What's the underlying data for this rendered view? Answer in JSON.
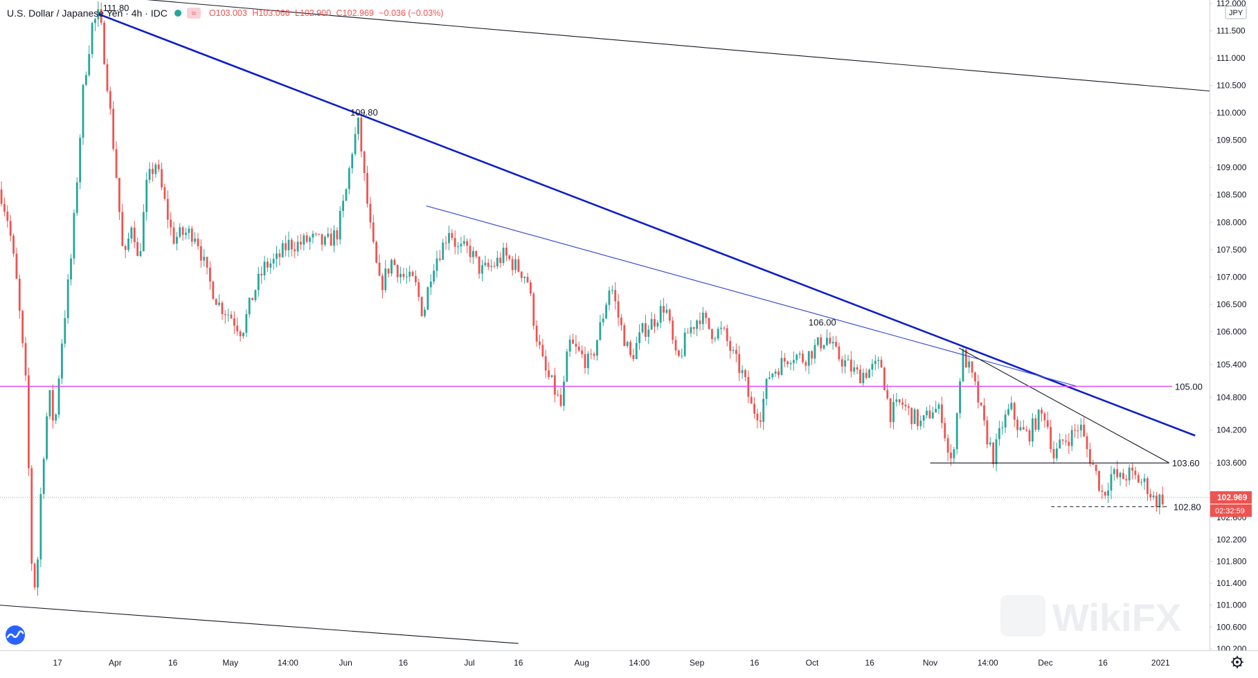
{
  "header": {
    "symbol": "U.S. Dollar / Japanese Yen · 4h · IDC",
    "open": "O103.003",
    "high": "H103.066",
    "low": "L102.900",
    "close": "C102.969",
    "change": "−0.036 (−0.03%)"
  },
  "currency_badge": "JPY",
  "watermark": "WikiFX",
  "current_price_label": "102.969",
  "countdown_label": "02:32:59",
  "colors": {
    "up": "#26a69a",
    "down": "#ef5350",
    "trend_primary": "#0c1ec8",
    "trend_secondary": "#3a4bd9",
    "support_105": "#e040fb",
    "channel": "#131722"
  },
  "chart_data": {
    "type": "candlestick",
    "timeframe": "4h",
    "ylim": [
      100.2,
      112.0
    ],
    "y_ticks": [
      "112.000",
      "111.500",
      "111.000",
      "110.500",
      "110.000",
      "109.500",
      "109.000",
      "108.500",
      "108.000",
      "107.500",
      "107.000",
      "106.500",
      "106.000",
      "105.400",
      "104.800",
      "104.200",
      "103.600",
      "103.000",
      "102.600",
      "102.200",
      "101.800",
      "101.400",
      "101.000",
      "100.600",
      "100.200"
    ],
    "x_ticks": [
      "17",
      "Apr",
      "16",
      "May",
      "14:00",
      "Jun",
      "16",
      "Jul",
      "16",
      "Aug",
      "14:00",
      "Sep",
      "16",
      "Oct",
      "16",
      "Nov",
      "14:00",
      "Dec",
      "16",
      "2021"
    ],
    "price_path": [
      {
        "x": 0.0,
        "y": 108.6
      },
      {
        "x": 0.3,
        "y": 108.0
      },
      {
        "x": 0.6,
        "y": 106.8
      },
      {
        "x": 0.9,
        "y": 105.0
      },
      {
        "x": 1.1,
        "y": 101.8
      },
      {
        "x": 1.25,
        "y": 101.2
      },
      {
        "x": 1.45,
        "y": 103.4
      },
      {
        "x": 1.7,
        "y": 104.9
      },
      {
        "x": 1.9,
        "y": 104.2
      },
      {
        "x": 2.1,
        "y": 105.6
      },
      {
        "x": 2.5,
        "y": 107.5
      },
      {
        "x": 2.9,
        "y": 110.5
      },
      {
        "x": 3.2,
        "y": 111.6
      },
      {
        "x": 3.45,
        "y": 111.8
      },
      {
        "x": 3.7,
        "y": 110.7
      },
      {
        "x": 4.05,
        "y": 108.8
      },
      {
        "x": 4.3,
        "y": 107.2
      },
      {
        "x": 4.6,
        "y": 108.1
      },
      {
        "x": 4.8,
        "y": 107.2
      },
      {
        "x": 5.1,
        "y": 108.7
      },
      {
        "x": 5.4,
        "y": 109.1
      },
      {
        "x": 5.7,
        "y": 108.4
      },
      {
        "x": 6.0,
        "y": 107.7
      },
      {
        "x": 6.4,
        "y": 107.8
      },
      {
        "x": 6.8,
        "y": 107.8
      },
      {
        "x": 7.2,
        "y": 107.0
      },
      {
        "x": 7.6,
        "y": 106.5
      },
      {
        "x": 8.0,
        "y": 106.3
      },
      {
        "x": 8.4,
        "y": 106.0
      },
      {
        "x": 8.8,
        "y": 106.7
      },
      {
        "x": 9.2,
        "y": 107.2
      },
      {
        "x": 9.6,
        "y": 107.3
      },
      {
        "x": 10.0,
        "y": 107.6
      },
      {
        "x": 10.4,
        "y": 107.6
      },
      {
        "x": 10.8,
        "y": 107.7
      },
      {
        "x": 11.3,
        "y": 107.6
      },
      {
        "x": 11.7,
        "y": 107.8
      },
      {
        "x": 12.0,
        "y": 108.5
      },
      {
        "x": 12.25,
        "y": 109.4
      },
      {
        "x": 12.45,
        "y": 109.8
      },
      {
        "x": 12.65,
        "y": 108.8
      },
      {
        "x": 12.9,
        "y": 107.7
      },
      {
        "x": 13.2,
        "y": 106.8
      },
      {
        "x": 13.6,
        "y": 107.3
      },
      {
        "x": 14.0,
        "y": 107.0
      },
      {
        "x": 14.4,
        "y": 106.9
      },
      {
        "x": 14.7,
        "y": 106.3
      },
      {
        "x": 15.0,
        "y": 107.2
      },
      {
        "x": 15.4,
        "y": 107.6
      },
      {
        "x": 15.6,
        "y": 107.9
      },
      {
        "x": 15.9,
        "y": 107.5
      },
      {
        "x": 16.3,
        "y": 107.5
      },
      {
        "x": 16.7,
        "y": 107.1
      },
      {
        "x": 17.1,
        "y": 107.2
      },
      {
        "x": 17.5,
        "y": 107.4
      },
      {
        "x": 17.9,
        "y": 107.2
      },
      {
        "x": 18.3,
        "y": 107.0
      },
      {
        "x": 18.6,
        "y": 106.0
      },
      {
        "x": 18.9,
        "y": 105.3
      },
      {
        "x": 19.2,
        "y": 105.0
      },
      {
        "x": 19.5,
        "y": 104.6
      },
      {
        "x": 19.75,
        "y": 105.8
      },
      {
        "x": 20.1,
        "y": 105.6
      },
      {
        "x": 20.5,
        "y": 105.4
      },
      {
        "x": 20.9,
        "y": 106.2
      },
      {
        "x": 21.2,
        "y": 106.9
      },
      {
        "x": 21.5,
        "y": 106.2
      },
      {
        "x": 21.9,
        "y": 105.5
      },
      {
        "x": 22.3,
        "y": 106.0
      },
      {
        "x": 22.7,
        "y": 106.2
      },
      {
        "x": 23.1,
        "y": 106.5
      },
      {
        "x": 23.5,
        "y": 105.4
      },
      {
        "x": 23.9,
        "y": 106.0
      },
      {
        "x": 24.3,
        "y": 106.3
      },
      {
        "x": 24.7,
        "y": 106.0
      },
      {
        "x": 25.1,
        "y": 106.0
      },
      {
        "x": 25.5,
        "y": 105.5
      },
      {
        "x": 25.8,
        "y": 105.2
      },
      {
        "x": 26.1,
        "y": 104.6
      },
      {
        "x": 26.4,
        "y": 104.5
      },
      {
        "x": 26.7,
        "y": 105.2
      },
      {
        "x": 27.1,
        "y": 105.4
      },
      {
        "x": 27.5,
        "y": 105.6
      },
      {
        "x": 27.9,
        "y": 105.5
      },
      {
        "x": 28.3,
        "y": 105.7
      },
      {
        "x": 28.7,
        "y": 105.9
      },
      {
        "x": 29.0,
        "y": 105.6
      },
      {
        "x": 29.4,
        "y": 105.4
      },
      {
        "x": 29.8,
        "y": 105.2
      },
      {
        "x": 30.2,
        "y": 105.3
      },
      {
        "x": 30.6,
        "y": 105.4
      },
      {
        "x": 30.9,
        "y": 104.5
      },
      {
        "x": 31.3,
        "y": 104.7
      },
      {
        "x": 31.6,
        "y": 104.5
      },
      {
        "x": 32.0,
        "y": 104.3
      },
      {
        "x": 32.4,
        "y": 104.6
      },
      {
        "x": 32.7,
        "y": 104.5
      },
      {
        "x": 33.0,
        "y": 103.5
      },
      {
        "x": 33.2,
        "y": 104.3
      },
      {
        "x": 33.4,
        "y": 105.6
      },
      {
        "x": 33.6,
        "y": 105.4
      },
      {
        "x": 33.9,
        "y": 104.9
      },
      {
        "x": 34.2,
        "y": 104.2
      },
      {
        "x": 34.5,
        "y": 103.7
      },
      {
        "x": 34.8,
        "y": 104.3
      },
      {
        "x": 35.1,
        "y": 104.6
      },
      {
        "x": 35.4,
        "y": 104.2
      },
      {
        "x": 35.7,
        "y": 104.1
      },
      {
        "x": 36.0,
        "y": 104.4
      },
      {
        "x": 36.3,
        "y": 104.5
      },
      {
        "x": 36.6,
        "y": 103.7
      },
      {
        "x": 36.9,
        "y": 104.0
      },
      {
        "x": 37.2,
        "y": 104.1
      },
      {
        "x": 37.5,
        "y": 104.3
      },
      {
        "x": 37.7,
        "y": 103.9
      },
      {
        "x": 38.0,
        "y": 103.5
      },
      {
        "x": 38.3,
        "y": 103.0
      },
      {
        "x": 38.6,
        "y": 103.4
      },
      {
        "x": 38.9,
        "y": 103.3
      },
      {
        "x": 39.2,
        "y": 103.4
      },
      {
        "x": 39.5,
        "y": 103.3
      },
      {
        "x": 39.8,
        "y": 103.2
      },
      {
        "x": 40.1,
        "y": 102.9
      },
      {
        "x": 40.4,
        "y": 102.97
      }
    ],
    "drawings": [
      {
        "kind": "trendline",
        "label": "111.80",
        "from": {
          "x": 3.45,
          "y": 111.8
        },
        "to": {
          "x": 41.5,
          "y": 104.1
        },
        "style": "primary"
      },
      {
        "kind": "trendline",
        "label": "109.80",
        "point": {
          "x": 12.45,
          "y": 109.8
        },
        "style": "primary"
      },
      {
        "kind": "trendline",
        "from": {
          "x": 14.8,
          "y": 108.3
        },
        "to": {
          "x": 37.4,
          "y": 105.0
        },
        "style": "secondary"
      },
      {
        "kind": "trendline",
        "from": {
          "x": 33.3,
          "y": 105.7
        },
        "to": {
          "x": 40.6,
          "y": 103.6
        },
        "style": "channel"
      },
      {
        "kind": "channel-top",
        "from": {
          "x": 0.0,
          "y": 112.3
        },
        "to": {
          "x": 42.0,
          "y": 110.4
        },
        "style": "channel"
      },
      {
        "kind": "channel-bottom",
        "from": {
          "x": 0.0,
          "y": 101.0
        },
        "to": {
          "x": 18.0,
          "y": 100.3
        },
        "style": "channel"
      },
      {
        "kind": "horizontal",
        "label": "105.00",
        "y": 105.0,
        "style": "support_105"
      },
      {
        "kind": "horizontal",
        "label": "103.60",
        "y": 103.6,
        "from_x": 32.3,
        "to_x": 40.6,
        "style": "channel"
      },
      {
        "kind": "horizontal-dashed",
        "label": "102.80",
        "y": 102.8,
        "from_x": 36.5,
        "to_x": 40.6,
        "style": "channel"
      },
      {
        "kind": "label",
        "label": "106.00",
        "point": {
          "x": 28.7,
          "y": 106.0
        }
      }
    ]
  }
}
